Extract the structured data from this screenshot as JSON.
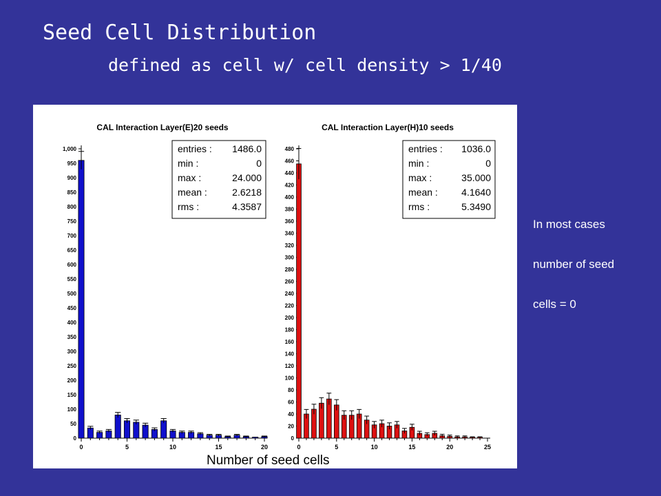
{
  "slide": {
    "title": "Seed Cell Distribution",
    "subtitle": "defined as cell w/ cell density > 1/40",
    "side_notes": [
      "In most cases",
      "number of seed",
      "cells = 0"
    ],
    "xaxis_label": "Number of seed cells"
  },
  "chart_data": [
    {
      "type": "bar",
      "title": "CAL Interaction Layer(E)20 seeds",
      "color": "#1010cc",
      "xlim": [
        0,
        20
      ],
      "xticks": [
        0,
        5,
        10,
        15,
        20
      ],
      "ylim": [
        0,
        1000
      ],
      "yticks": [
        0,
        50,
        100,
        150,
        200,
        250,
        300,
        350,
        400,
        450,
        500,
        550,
        600,
        650,
        700,
        750,
        800,
        850,
        900,
        950,
        1000
      ],
      "ytick_labels": [
        "0",
        "50",
        "100",
        "150",
        "200",
        "250",
        "300",
        "350",
        "400",
        "450",
        "500",
        "550",
        "600",
        "650",
        "700",
        "750",
        "800",
        "850",
        "900",
        "950",
        "1,000"
      ],
      "x": [
        0,
        1,
        2,
        3,
        4,
        5,
        6,
        7,
        8,
        9,
        10,
        11,
        12,
        13,
        14,
        15,
        16,
        17,
        18,
        19,
        20
      ],
      "values": [
        960,
        35,
        20,
        25,
        80,
        60,
        55,
        45,
        30,
        60,
        25,
        20,
        20,
        15,
        10,
        10,
        5,
        10,
        5,
        0,
        5
      ],
      "stats": [
        {
          "label": "entries :",
          "value": "1486.0"
        },
        {
          "label": "min :",
          "value": "0"
        },
        {
          "label": "max :",
          "value": "24.000"
        },
        {
          "label": "mean :",
          "value": "2.6218"
        },
        {
          "label": "rms :",
          "value": "4.3587"
        }
      ]
    },
    {
      "type": "bar",
      "title": "CAL Interaction Layer(H)10 seeds",
      "color": "#dd1111",
      "xlim": [
        0,
        25
      ],
      "xticks": [
        0,
        5,
        10,
        15,
        20,
        25
      ],
      "ylim": [
        0,
        480
      ],
      "yticks": [
        0,
        20,
        40,
        60,
        80,
        100,
        120,
        140,
        160,
        180,
        200,
        220,
        240,
        260,
        280,
        300,
        320,
        340,
        360,
        380,
        400,
        420,
        440,
        460,
        480
      ],
      "ytick_labels": [
        "0",
        "20",
        "40",
        "60",
        "80",
        "100",
        "120",
        "140",
        "160",
        "180",
        "200",
        "220",
        "240",
        "260",
        "280",
        "300",
        "320",
        "340",
        "360",
        "380",
        "400",
        "420",
        "440",
        "460",
        "480"
      ],
      "x": [
        0,
        1,
        2,
        3,
        4,
        5,
        6,
        7,
        8,
        9,
        10,
        11,
        12,
        13,
        14,
        15,
        16,
        17,
        18,
        19,
        20,
        21,
        22,
        23,
        24
      ],
      "values": [
        455,
        40,
        48,
        58,
        65,
        55,
        38,
        38,
        40,
        30,
        22,
        24,
        20,
        22,
        12,
        18,
        8,
        6,
        8,
        4,
        3,
        2,
        2,
        1,
        1
      ],
      "stats": [
        {
          "label": "entries :",
          "value": "1036.0"
        },
        {
          "label": "min :",
          "value": "0"
        },
        {
          "label": "max :",
          "value": "35.000"
        },
        {
          "label": "mean :",
          "value": "4.1640"
        },
        {
          "label": "rms :",
          "value": "5.3490"
        }
      ]
    }
  ]
}
